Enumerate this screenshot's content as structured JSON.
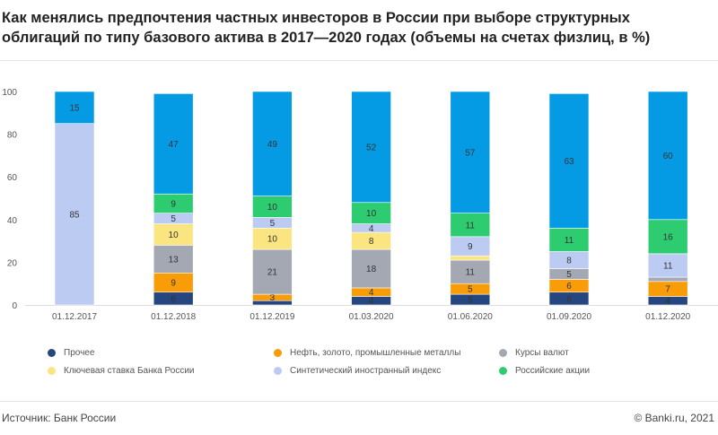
{
  "title": "Как менялись предпочтения частных инвесторов в России при выборе структурных облигаций по типу базового актива в 2017—2020 годах (объемы на счетах физлиц, в %)",
  "footer": {
    "source": "Источник: Банк России",
    "copyright": "© Banki.ru, 2021"
  },
  "chart_data": {
    "type": "bar",
    "stacked": true,
    "title": "Как менялись предпочтения частных инвесторов в России при выборе структурных облигаций по типу базового актива в 2017—2020 годах (объемы на счетах физлиц, в %)",
    "xlabel": "",
    "ylabel": "",
    "ylim": [
      0,
      100
    ],
    "yticks": [
      "0",
      "20",
      "40",
      "60",
      "80",
      "100"
    ],
    "grid": false,
    "legend_position": "bottom",
    "categories": [
      "01.12.2017",
      "01.12.2018",
      "01.12.2019",
      "01.03.2020",
      "01.06.2020",
      "01.09.2020",
      "01.12.2020"
    ],
    "series": [
      {
        "name": "Прочее",
        "color": "#26467f",
        "values": [
          0,
          6,
          2,
          4,
          5,
          6,
          4
        ]
      },
      {
        "name": "Нефть, золото, промышленные металлы",
        "color": "#f89c07",
        "values": [
          0,
          9,
          3,
          4,
          5,
          6,
          7
        ]
      },
      {
        "name": "Курсы валют",
        "color": "#a3a8b3",
        "values": [
          0,
          13,
          21,
          18,
          11,
          5,
          2
        ]
      },
      {
        "name": "Ключевая ставка Банка России",
        "color": "#fbe580",
        "values": [
          0,
          10,
          10,
          8,
          2,
          0,
          0
        ]
      },
      {
        "name": "Синтетический иностранный индекс",
        "color": "#bccbf2",
        "values": [
          85,
          5,
          5,
          4,
          9,
          8,
          11
        ]
      },
      {
        "name": "Российские акции",
        "color": "#2ecc71",
        "values": [
          0,
          9,
          10,
          10,
          11,
          11,
          16
        ]
      },
      {
        "name": "",
        "color": "#049be4",
        "values": [
          15,
          47,
          49,
          52,
          57,
          63,
          60
        ]
      }
    ]
  }
}
